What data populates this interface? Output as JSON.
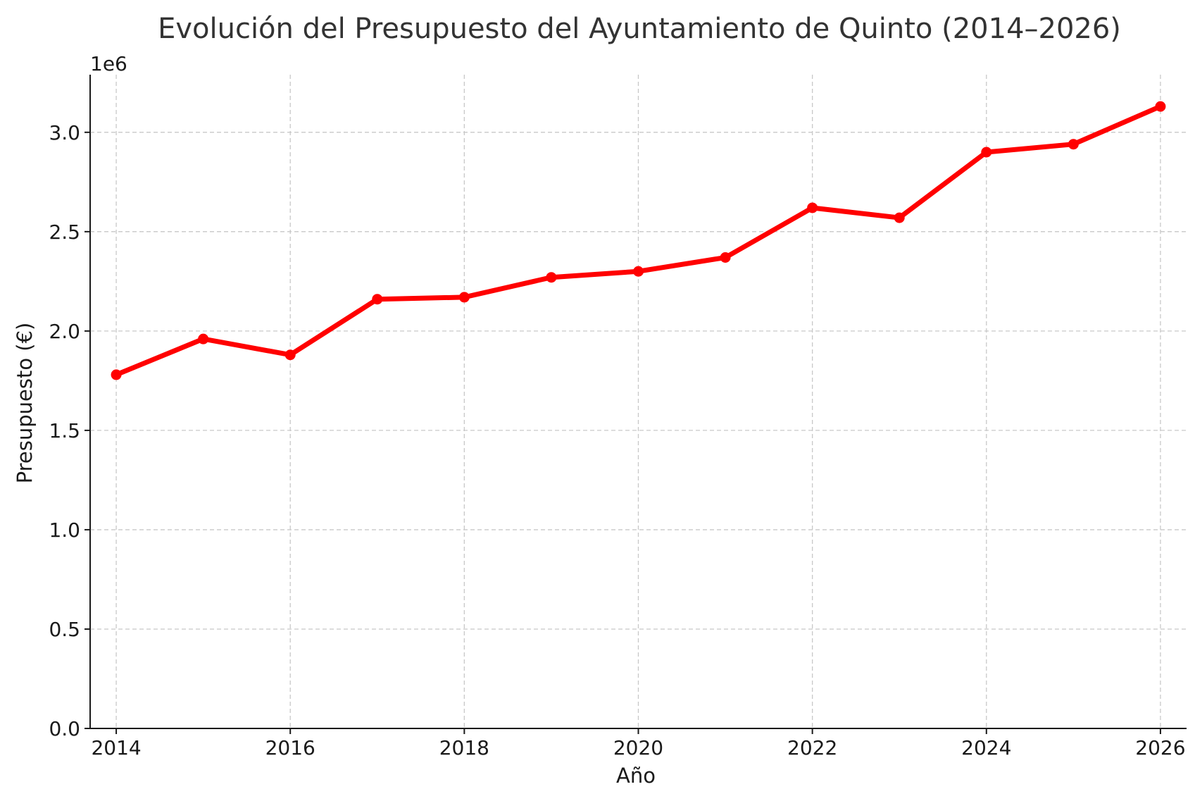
{
  "chart_data": {
    "type": "line",
    "title": "Evolución del Presupuesto del Ayuntamiento de Quinto (2014–2026)",
    "xlabel": "Año",
    "ylabel": "Presupuesto (€)",
    "y_offset_label": "1e6",
    "x": [
      2014,
      2015,
      2016,
      2017,
      2018,
      2019,
      2020,
      2021,
      2022,
      2023,
      2024,
      2025,
      2026
    ],
    "series": [
      {
        "values": [
          1780000,
          1960000,
          1880000,
          2160000,
          2170000,
          2270000,
          2300000,
          2370000,
          2620000,
          2570000,
          2900000,
          2940000,
          3130000
        ],
        "color": "#ff0000",
        "marker": "circle"
      }
    ],
    "xlim": [
      2013.7,
      2026.3
    ],
    "ylim": [
      0,
      3290000
    ],
    "xticks": [
      2014,
      2016,
      2018,
      2020,
      2022,
      2024,
      2026
    ],
    "xtick_labels": [
      "2014",
      "2016",
      "2018",
      "2020",
      "2022",
      "2024",
      "2026"
    ],
    "yticks": [
      0,
      500000,
      1000000,
      1500000,
      2000000,
      2500000,
      3000000
    ],
    "ytick_labels": [
      "0.0",
      "0.5",
      "1.0",
      "1.5",
      "2.0",
      "2.5",
      "3.0"
    ],
    "grid": true
  }
}
